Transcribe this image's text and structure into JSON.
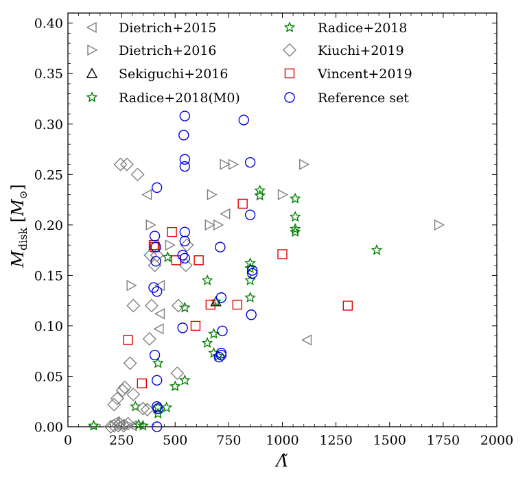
{
  "chart_data": {
    "type": "scatter",
    "title": "",
    "xlabel": "Λ̃",
    "ylabel": "M_disk [M_⊙]",
    "ylabel_main": "M",
    "ylabel_sub": "disk",
    "ylabel_unit_open": " [",
    "ylabel_unit_symbol": "M",
    "ylabel_unit_sub": "⊙",
    "ylabel_unit_close": "]",
    "xlim": [
      0,
      2000
    ],
    "ylim": [
      0,
      0.41
    ],
    "xticks": [
      0,
      250,
      500,
      750,
      1000,
      1250,
      1500,
      1750,
      2000
    ],
    "xtick_labels": [
      "0",
      "250",
      "500",
      "750",
      "1000",
      "1250",
      "1500",
      "1750",
      "2000"
    ],
    "yticks": [
      0,
      0.05,
      0.1,
      0.15,
      0.2,
      0.25,
      0.3,
      0.35,
      0.4
    ],
    "ytick_labels": [
      "0.00",
      "0.05",
      "0.10",
      "0.15",
      "0.20",
      "0.25",
      "0.30",
      "0.35",
      "0.40"
    ],
    "grid": false,
    "legend_position": "top",
    "series": [
      {
        "name": "Dietrich+2015",
        "marker": "triangle-left",
        "color": "#808080",
        "points": [
          [
            370,
            0.23
          ],
          [
            735,
            0.211
          ],
          [
            430,
            0.14
          ],
          [
            430,
            0.112
          ],
          [
            425,
            0.097
          ],
          [
            1115,
            0.086
          ],
          [
            220,
            0.005
          ],
          [
            245,
            0.002
          ],
          [
            300,
            0.001
          ]
        ]
      },
      {
        "name": "Dietrich+2016",
        "marker": "triangle-right",
        "color": "#808080",
        "points": [
          [
            730,
            0.26
          ],
          [
            770,
            0.26
          ],
          [
            1100,
            0.26
          ],
          [
            670,
            0.23
          ],
          [
            1000,
            0.23
          ],
          [
            385,
            0.2
          ],
          [
            660,
            0.2
          ],
          [
            700,
            0.2
          ],
          [
            1730,
            0.2
          ],
          [
            475,
            0.18
          ],
          [
            295,
            0.14
          ],
          [
            280,
            0.002
          ]
        ]
      },
      {
        "name": "Sekiguchi+2016",
        "marker": "triangle-up",
        "color": "#000000",
        "points": [
          [
            690,
            0.124
          ]
        ]
      },
      {
        "name": "Radice+2018(M0)",
        "marker": "star",
        "color": "#008000",
        "points": [
          [
            120,
            0.001
          ]
        ]
      },
      {
        "name": "Radice+2018",
        "marker": "star",
        "color": "#008000",
        "points": [
          [
            895,
            0.234
          ],
          [
            895,
            0.229
          ],
          [
            1060,
            0.226
          ],
          [
            1060,
            0.208
          ],
          [
            1060,
            0.196
          ],
          [
            1060,
            0.193
          ],
          [
            1440,
            0.175
          ],
          [
            465,
            0.168
          ],
          [
            850,
            0.162
          ],
          [
            850,
            0.157
          ],
          [
            850,
            0.145
          ],
          [
            650,
            0.145
          ],
          [
            850,
            0.128
          ],
          [
            690,
            0.124
          ],
          [
            545,
            0.118
          ],
          [
            680,
            0.092
          ],
          [
            650,
            0.083
          ],
          [
            680,
            0.073
          ],
          [
            700,
            0.07
          ],
          [
            420,
            0.063
          ],
          [
            545,
            0.046
          ],
          [
            500,
            0.04
          ],
          [
            460,
            0.019
          ],
          [
            420,
            0.019
          ],
          [
            420,
            0.013
          ],
          [
            315,
            0.02
          ],
          [
            330,
            0.002
          ],
          [
            350,
            0.001
          ]
        ]
      },
      {
        "name": "Kiuchi+2019",
        "marker": "diamond",
        "color": "#808080",
        "points": [
          [
            245,
            0.26
          ],
          [
            275,
            0.26
          ],
          [
            325,
            0.25
          ],
          [
            385,
            0.17
          ],
          [
            415,
            0.17
          ],
          [
            405,
            0.16
          ],
          [
            555,
            0.18
          ],
          [
            550,
            0.16
          ],
          [
            515,
            0.12
          ],
          [
            305,
            0.12
          ],
          [
            390,
            0.12
          ],
          [
            380,
            0.087
          ],
          [
            290,
            0.063
          ],
          [
            510,
            0.053
          ],
          [
            265,
            0.039
          ],
          [
            255,
            0.036
          ],
          [
            305,
            0.032
          ],
          [
            230,
            0.028
          ],
          [
            215,
            0.022
          ],
          [
            370,
            0.017
          ],
          [
            350,
            0.018
          ],
          [
            240,
            0.003
          ],
          [
            280,
            0.003
          ],
          [
            215,
            0.001
          ],
          [
            235,
            0.001
          ],
          [
            260,
            0.001
          ],
          [
            200,
            0.0
          ]
        ]
      },
      {
        "name": "Vincent+2019",
        "marker": "square",
        "color": "#e00000",
        "points": [
          [
            815,
            0.221
          ],
          [
            485,
            0.193
          ],
          [
            400,
            0.18
          ],
          [
            405,
            0.178
          ],
          [
            505,
            0.165
          ],
          [
            610,
            0.165
          ],
          [
            1000,
            0.171
          ],
          [
            665,
            0.121
          ],
          [
            790,
            0.121
          ],
          [
            1305,
            0.12
          ],
          [
            595,
            0.1
          ],
          [
            280,
            0.086
          ],
          [
            345,
            0.043
          ]
        ]
      },
      {
        "name": "Reference set",
        "marker": "circle",
        "color": "#0000e0",
        "points": [
          [
            545,
            0.308
          ],
          [
            820,
            0.304
          ],
          [
            540,
            0.289
          ],
          [
            545,
            0.265
          ],
          [
            850,
            0.262
          ],
          [
            545,
            0.258
          ],
          [
            415,
            0.237
          ],
          [
            850,
            0.21
          ],
          [
            545,
            0.193
          ],
          [
            405,
            0.189
          ],
          [
            545,
            0.184
          ],
          [
            410,
            0.178
          ],
          [
            710,
            0.178
          ],
          [
            535,
            0.17
          ],
          [
            545,
            0.167
          ],
          [
            410,
            0.164
          ],
          [
            860,
            0.155
          ],
          [
            860,
            0.152
          ],
          [
            400,
            0.138
          ],
          [
            415,
            0.134
          ],
          [
            715,
            0.128
          ],
          [
            855,
            0.111
          ],
          [
            535,
            0.098
          ],
          [
            720,
            0.095
          ],
          [
            405,
            0.071
          ],
          [
            715,
            0.073
          ],
          [
            715,
            0.071
          ],
          [
            705,
            0.069
          ],
          [
            415,
            0.046
          ],
          [
            415,
            0.02
          ],
          [
            420,
            0.018
          ],
          [
            415,
            0.0
          ]
        ]
      }
    ]
  }
}
